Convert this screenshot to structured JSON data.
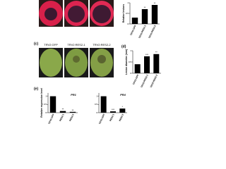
{
  "figure": {
    "panel_c": "(c)",
    "panel_d": "(d)",
    "panel_e": "(e)",
    "leaf_labels": [
      "TRV2:GFP",
      "TRV2:RES2-1",
      "TRV2:RES2-2"
    ]
  },
  "chart_data": [
    {
      "type": "bar",
      "y_label": "Relative lesions",
      "categories": [
        "TRV2:GFP",
        "TRV2:RES2-1",
        "TRV2:RES2-2"
      ],
      "values": [
        0.3,
        0.7,
        0.9
      ],
      "significance": [
        null,
        "**",
        "**"
      ],
      "color": "#000000",
      "ylim": [
        0,
        1
      ],
      "yticks": [
        0,
        0.5,
        1
      ]
    },
    {
      "type": "bar",
      "y_label": "Lesion diameter (mm)",
      "categories": [
        "TRV2:GFP",
        "TRV2:RES2-1",
        "TRV2:RES2-2"
      ],
      "values": [
        0.4,
        0.75,
        0.85
      ],
      "significance": [
        null,
        "***",
        "**"
      ],
      "color": "#000000",
      "ylim": [
        0,
        1
      ],
      "yticks": [
        0,
        0.5,
        1
      ]
    },
    {
      "type": "bar",
      "title": "PR1",
      "y_label": "Relative expression level",
      "categories": [
        "TRV2:GFP",
        "RES2-1",
        "RES2-2"
      ],
      "values": [
        1,
        0.1,
        0.05
      ],
      "significance": [
        null,
        "**",
        "**"
      ],
      "color": "#000000",
      "ylim": [
        0,
        1.2
      ],
      "yticks": [
        0,
        0.5,
        1
      ]
    },
    {
      "type": "bar",
      "title": "PR4",
      "categories": [
        "TRV2:GFP",
        "RES2-1",
        "RES2-2"
      ],
      "values": [
        1,
        0.08,
        0.25
      ],
      "significance": [
        null,
        "***",
        "*"
      ],
      "color": "#000000",
      "ylim": [
        0,
        1.2
      ],
      "yticks": [
        0,
        0.5,
        1
      ]
    }
  ]
}
